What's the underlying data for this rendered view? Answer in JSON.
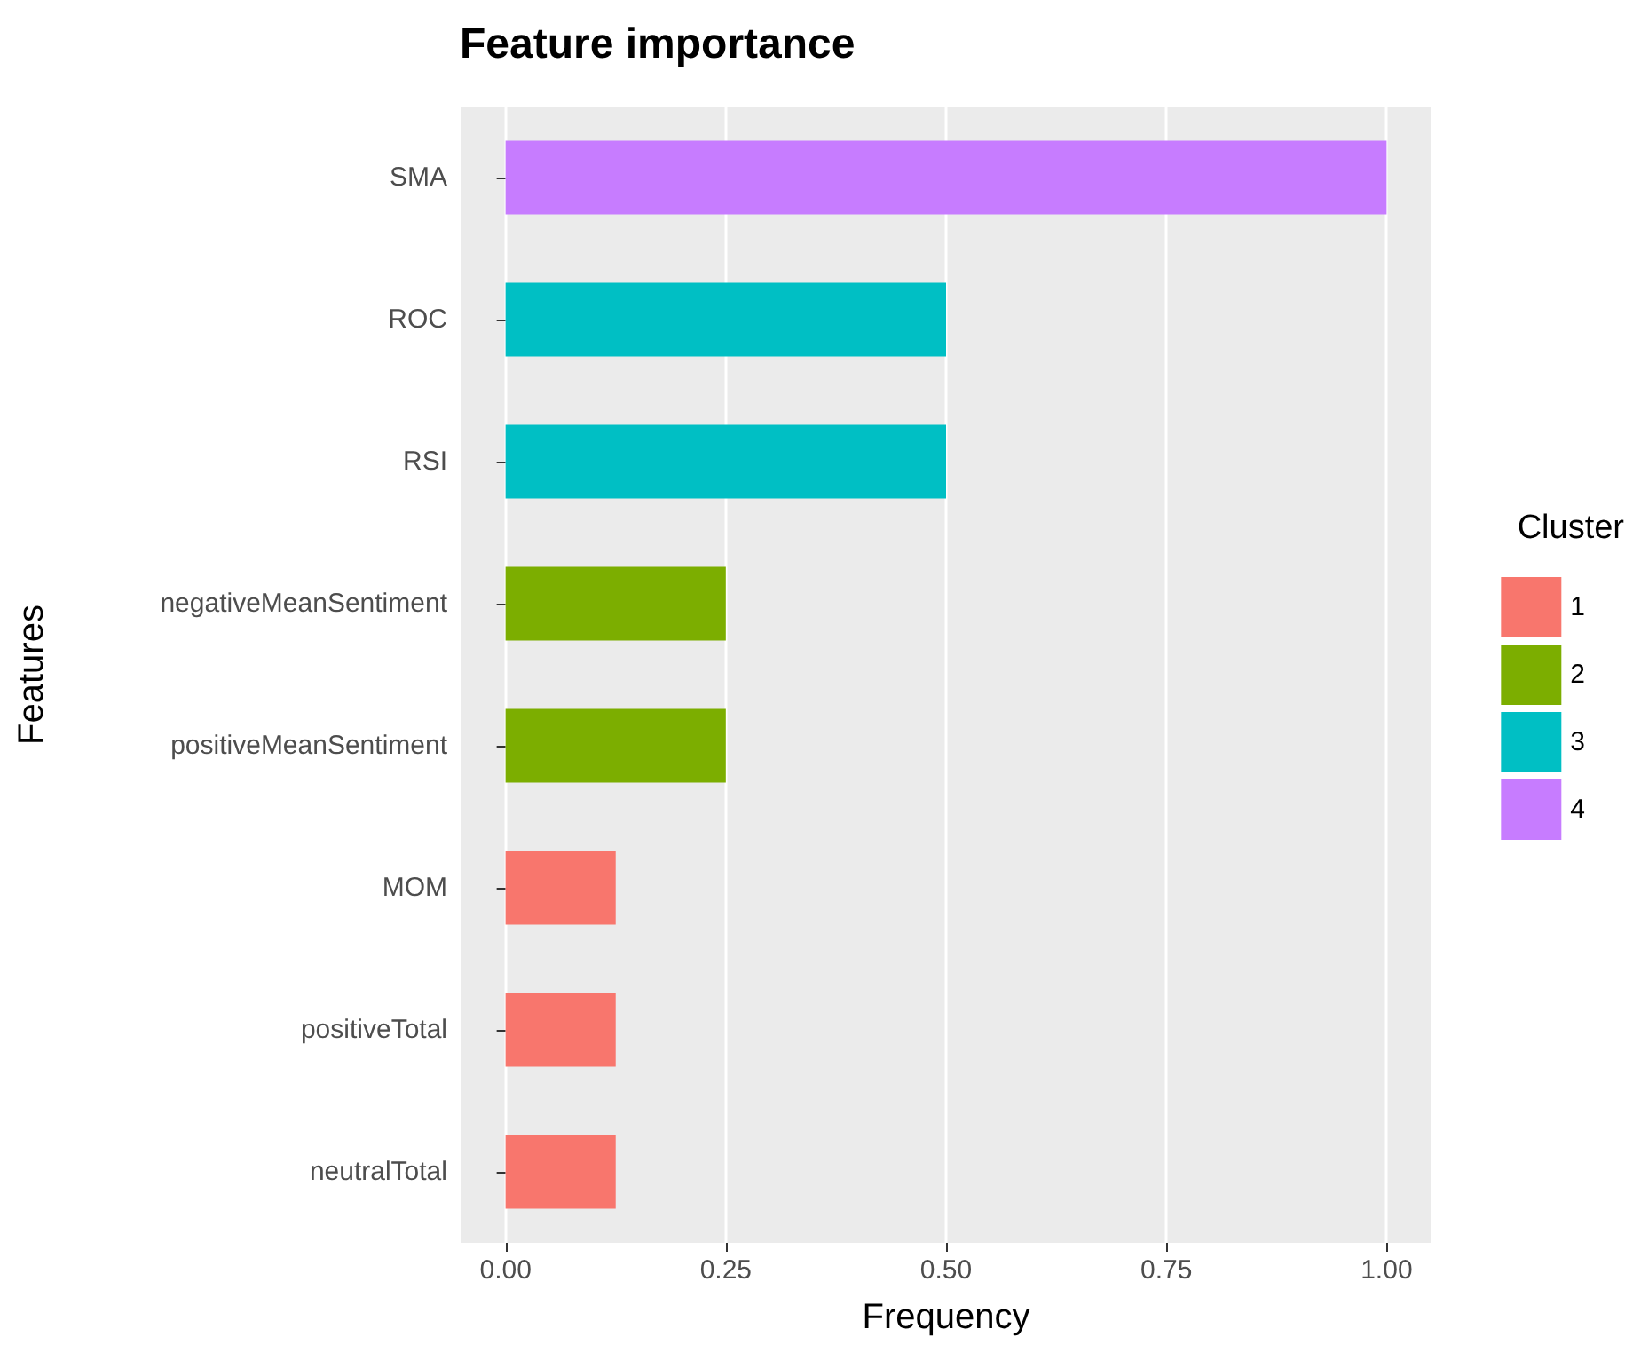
{
  "chart_data": {
    "type": "bar",
    "orientation": "horizontal",
    "stacked": true,
    "title": "Feature importance",
    "xlabel": "Frequency",
    "ylabel": "Features",
    "legend_title": "Cluster",
    "legend": "right",
    "grid": "x",
    "categories": [
      "SMA",
      "ROC",
      "RSI",
      "negativeMeanSentiment",
      "positiveMeanSentiment",
      "MOM",
      "positiveTotal",
      "neutralTotal"
    ],
    "xlim": [
      -0.05,
      1.05
    ],
    "xticks": [
      {
        "value": 0,
        "label": "0.00"
      },
      {
        "value": 0.25,
        "label": "0.25"
      },
      {
        "value": 0.5,
        "label": "0.50"
      },
      {
        "value": 0.75,
        "label": "0.75"
      },
      {
        "value": 1,
        "label": "1.00"
      }
    ],
    "series": [
      {
        "name": "1",
        "color": "#f8766d",
        "values": [
          null,
          null,
          null,
          null,
          null,
          0.125,
          0.125,
          0.125
        ]
      },
      {
        "name": "2",
        "color": "#7cae00",
        "values": [
          null,
          null,
          null,
          0.25,
          0.25,
          null,
          null,
          null
        ]
      },
      {
        "name": "3",
        "color": "#00bfc4",
        "values": [
          null,
          0.5,
          0.5,
          null,
          null,
          null,
          null,
          null
        ]
      },
      {
        "name": "4",
        "color": "#c77cff",
        "values": [
          1,
          null,
          null,
          null,
          null,
          null,
          null,
          null
        ]
      }
    ]
  }
}
